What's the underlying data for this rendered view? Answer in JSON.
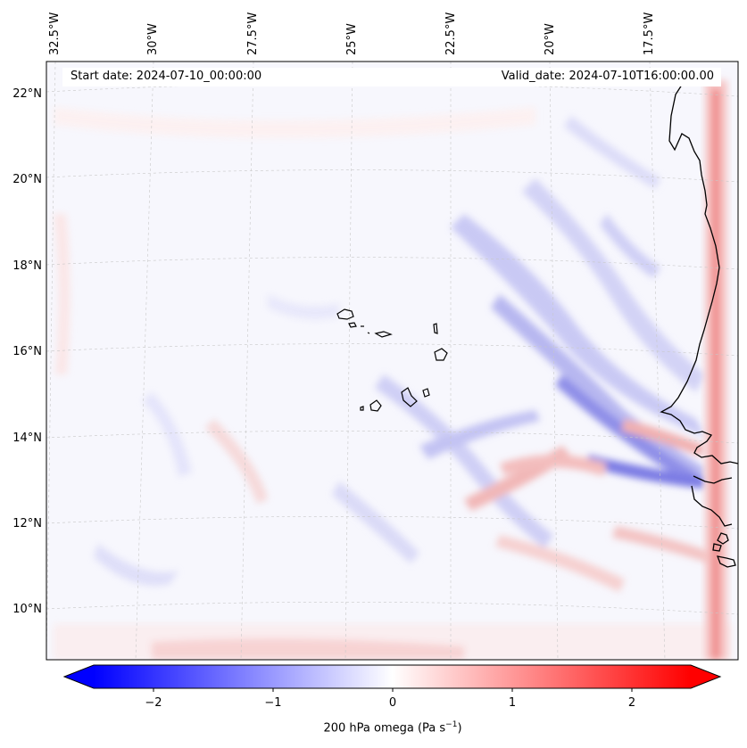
{
  "header": {
    "start_date": "Start date: 2024-07-10_00:00:00",
    "valid_date": "Valid_date: 2024-07-10T16:00:00.00"
  },
  "map": {
    "projection": "conic",
    "variable": "200 hPa omega",
    "longitude_labels": [
      "32.5°W",
      "30°W",
      "27.5°W",
      "25°W",
      "22.5°W",
      "20°W",
      "17.5°W"
    ],
    "latitude_labels": [
      "22°N",
      "20°N",
      "18°N",
      "16°N",
      "14°N",
      "12°N",
      "10°N"
    ],
    "coastline_color": "#000000",
    "gridlines": true,
    "features": [
      "Cape Verde islands",
      "West African coastline (Mauritania, Senegal, Gambia, Guinea-Bissau)"
    ]
  },
  "colorbar": {
    "colormap": "bwr",
    "min": -2.5,
    "max": 2.5,
    "extend": "both",
    "low_color": "#0000ff",
    "mid_color": "#ffffff",
    "high_color": "#ff0000",
    "ticks": [
      "−2",
      "−1",
      "0",
      "1",
      "2"
    ],
    "label_text": "200 hPa omega (Pa s",
    "label_exp": "−1",
    "label_close": ")"
  }
}
